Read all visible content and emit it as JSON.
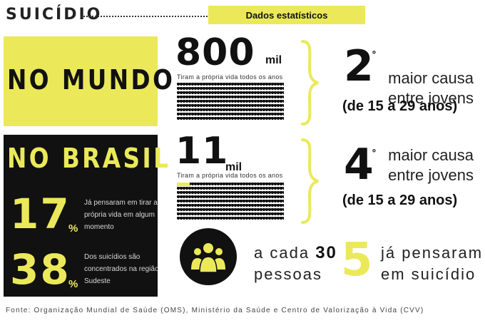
{
  "header": {
    "title": "SUICÍDIO",
    "banner": "Dados estatísticos"
  },
  "mundo": {
    "label": "NO MUNDO",
    "number": "800",
    "unit": "mil",
    "caption": "Tiram a própria vida todos os anos",
    "rank": "2",
    "rank_ordinal": "º",
    "cause_line1": "maior causa",
    "cause_line2": "entre jovens",
    "age_range": "(de 15 a 29 anos)"
  },
  "brasil": {
    "label": "NO BRASIL",
    "number": "11",
    "unit": "mil",
    "caption": "Tiram a própria vida todos os anos",
    "rank": "4",
    "rank_ordinal": "º",
    "cause_line1": "maior causa",
    "cause_line2": "entre jovens",
    "age_range": "(de 15 a 29 anos)",
    "stat1": {
      "value": "17",
      "sign": "%",
      "text": "Já pensaram em tirar a própria vida em algum momento"
    },
    "stat2": {
      "value": "38",
      "sign": "%",
      "text": "Dos suicídios são concentrados na região Sudeste"
    }
  },
  "pessoas": {
    "line1_prefix": "a cada",
    "line1_number": "30",
    "line2": "pessoas",
    "count": "5",
    "line3": "já pensaram",
    "line4": "em suicídio"
  },
  "source": "Fonte: Organização Mundial de Saúde (OMS), Ministério da Saúde e Centro de Valorização à Vida (CVV)",
  "colors": {
    "accent": "#ebe95a",
    "dark": "#111111"
  },
  "icons": [
    "people-group-icon",
    "curly-brace-icon"
  ]
}
